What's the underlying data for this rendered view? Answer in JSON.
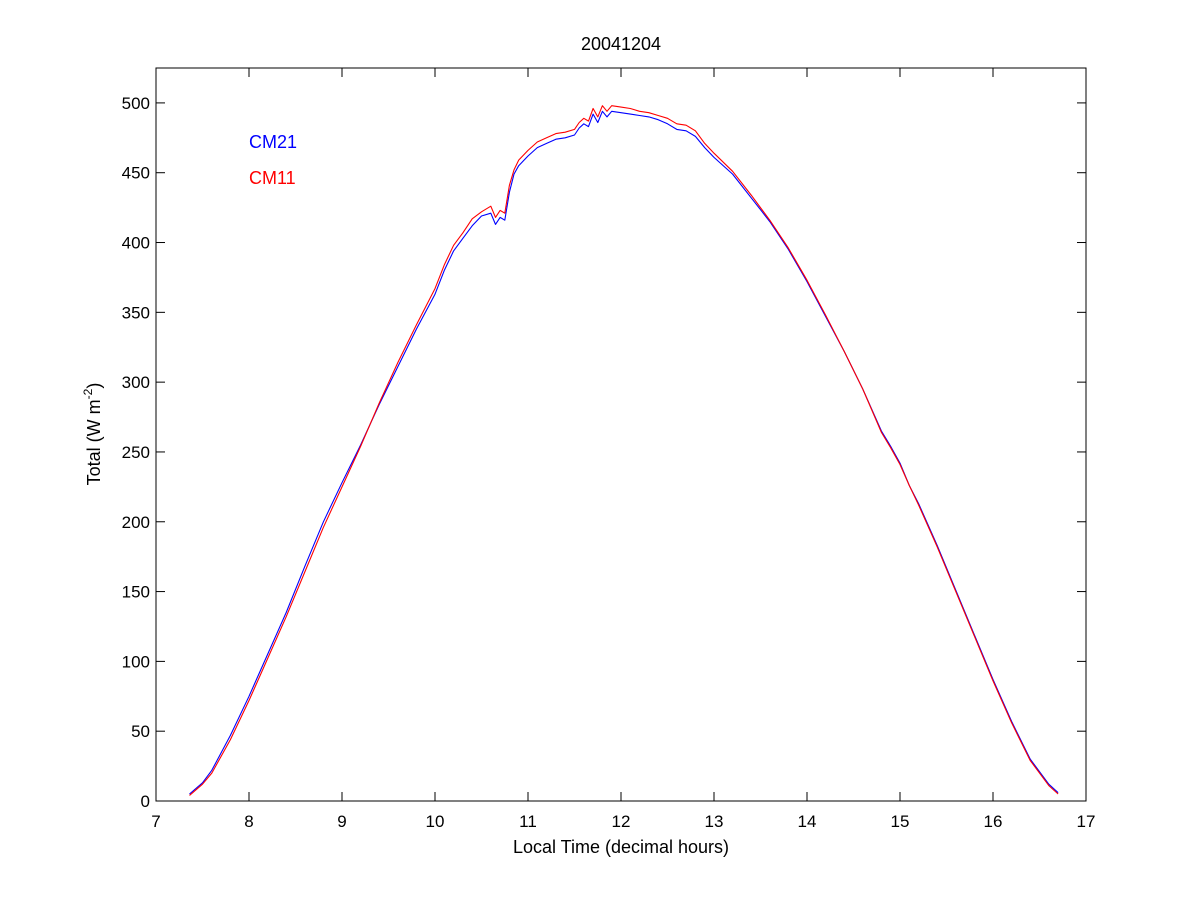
{
  "chart_data": {
    "type": "line",
    "title": "20041204",
    "xlabel": "Local Time (decimal hours)",
    "ylabel_main": "Total (W m",
    "ylabel_sup": "-2",
    "ylabel_end": ")",
    "xlim": [
      7,
      17
    ],
    "ylim": [
      0,
      525
    ],
    "xticks": [
      7,
      8,
      9,
      10,
      11,
      12,
      13,
      14,
      15,
      16,
      17
    ],
    "yticks": [
      0,
      50,
      100,
      150,
      200,
      250,
      300,
      350,
      400,
      450,
      500
    ],
    "grid": false,
    "legend": {
      "placement": "top-left"
    },
    "series": [
      {
        "name": "CM21",
        "color": "#0000ff",
        "x": [
          7.36,
          7.5,
          7.6,
          7.8,
          8.0,
          8.2,
          8.4,
          8.6,
          8.8,
          9.0,
          9.2,
          9.4,
          9.6,
          9.8,
          10.0,
          10.1,
          10.2,
          10.3,
          10.4,
          10.5,
          10.6,
          10.65,
          10.7,
          10.75,
          10.8,
          10.85,
          10.9,
          11.0,
          11.1,
          11.2,
          11.3,
          11.4,
          11.5,
          11.55,
          11.6,
          11.65,
          11.7,
          11.75,
          11.8,
          11.85,
          11.9,
          12.0,
          12.1,
          12.2,
          12.3,
          12.4,
          12.5,
          12.6,
          12.7,
          12.8,
          12.9,
          13.0,
          13.2,
          13.4,
          13.6,
          13.8,
          14.0,
          14.2,
          14.4,
          14.6,
          14.8,
          14.9,
          15.0,
          15.1,
          15.2,
          15.4,
          15.6,
          15.8,
          16.0,
          16.2,
          16.4,
          16.6,
          16.7
        ],
        "y": [
          5,
          13,
          22,
          47,
          75,
          105,
          135,
          168,
          200,
          228,
          255,
          284,
          311,
          338,
          363,
          380,
          394,
          403,
          412,
          419,
          421,
          413,
          418,
          416,
          436,
          449,
          455,
          462,
          468,
          471,
          474,
          475,
          477,
          482,
          485,
          483,
          492,
          486,
          494,
          490,
          494,
          493,
          492,
          491,
          490,
          488,
          485,
          481,
          480,
          476,
          468,
          461,
          449,
          432,
          415,
          395,
          372,
          347,
          322,
          295,
          265,
          254,
          242,
          226,
          213,
          183,
          151,
          119,
          87,
          57,
          30,
          12,
          6
        ]
      },
      {
        "name": "CM11",
        "color": "#ff0000",
        "x": [
          7.36,
          7.5,
          7.6,
          7.8,
          8.0,
          8.2,
          8.4,
          8.6,
          8.8,
          9.0,
          9.2,
          9.4,
          9.6,
          9.8,
          10.0,
          10.1,
          10.2,
          10.3,
          10.4,
          10.5,
          10.6,
          10.65,
          10.7,
          10.75,
          10.8,
          10.85,
          10.9,
          11.0,
          11.1,
          11.2,
          11.3,
          11.4,
          11.5,
          11.55,
          11.6,
          11.65,
          11.7,
          11.75,
          11.8,
          11.85,
          11.9,
          12.0,
          12.1,
          12.2,
          12.3,
          12.4,
          12.5,
          12.6,
          12.7,
          12.8,
          12.9,
          13.0,
          13.2,
          13.4,
          13.6,
          13.8,
          14.0,
          14.2,
          14.4,
          14.6,
          14.8,
          14.9,
          15.0,
          15.1,
          15.2,
          15.4,
          15.6,
          15.8,
          16.0,
          16.2,
          16.4,
          16.6,
          16.7
        ],
        "y": [
          4,
          12,
          20,
          44,
          72,
          102,
          132,
          164,
          196,
          225,
          254,
          285,
          314,
          341,
          367,
          384,
          398,
          407,
          417,
          422,
          426,
          418,
          423,
          421,
          441,
          452,
          459,
          466,
          472,
          475,
          478,
          479,
          481,
          486,
          489,
          487,
          496,
          490,
          498,
          494,
          498,
          497,
          496,
          494,
          493,
          491,
          489,
          485,
          484,
          480,
          471,
          464,
          451,
          434,
          416,
          396,
          373,
          348,
          322,
          295,
          264,
          253,
          241,
          226,
          212,
          182,
          150,
          118,
          86,
          56,
          29,
          11,
          5
        ]
      }
    ]
  }
}
